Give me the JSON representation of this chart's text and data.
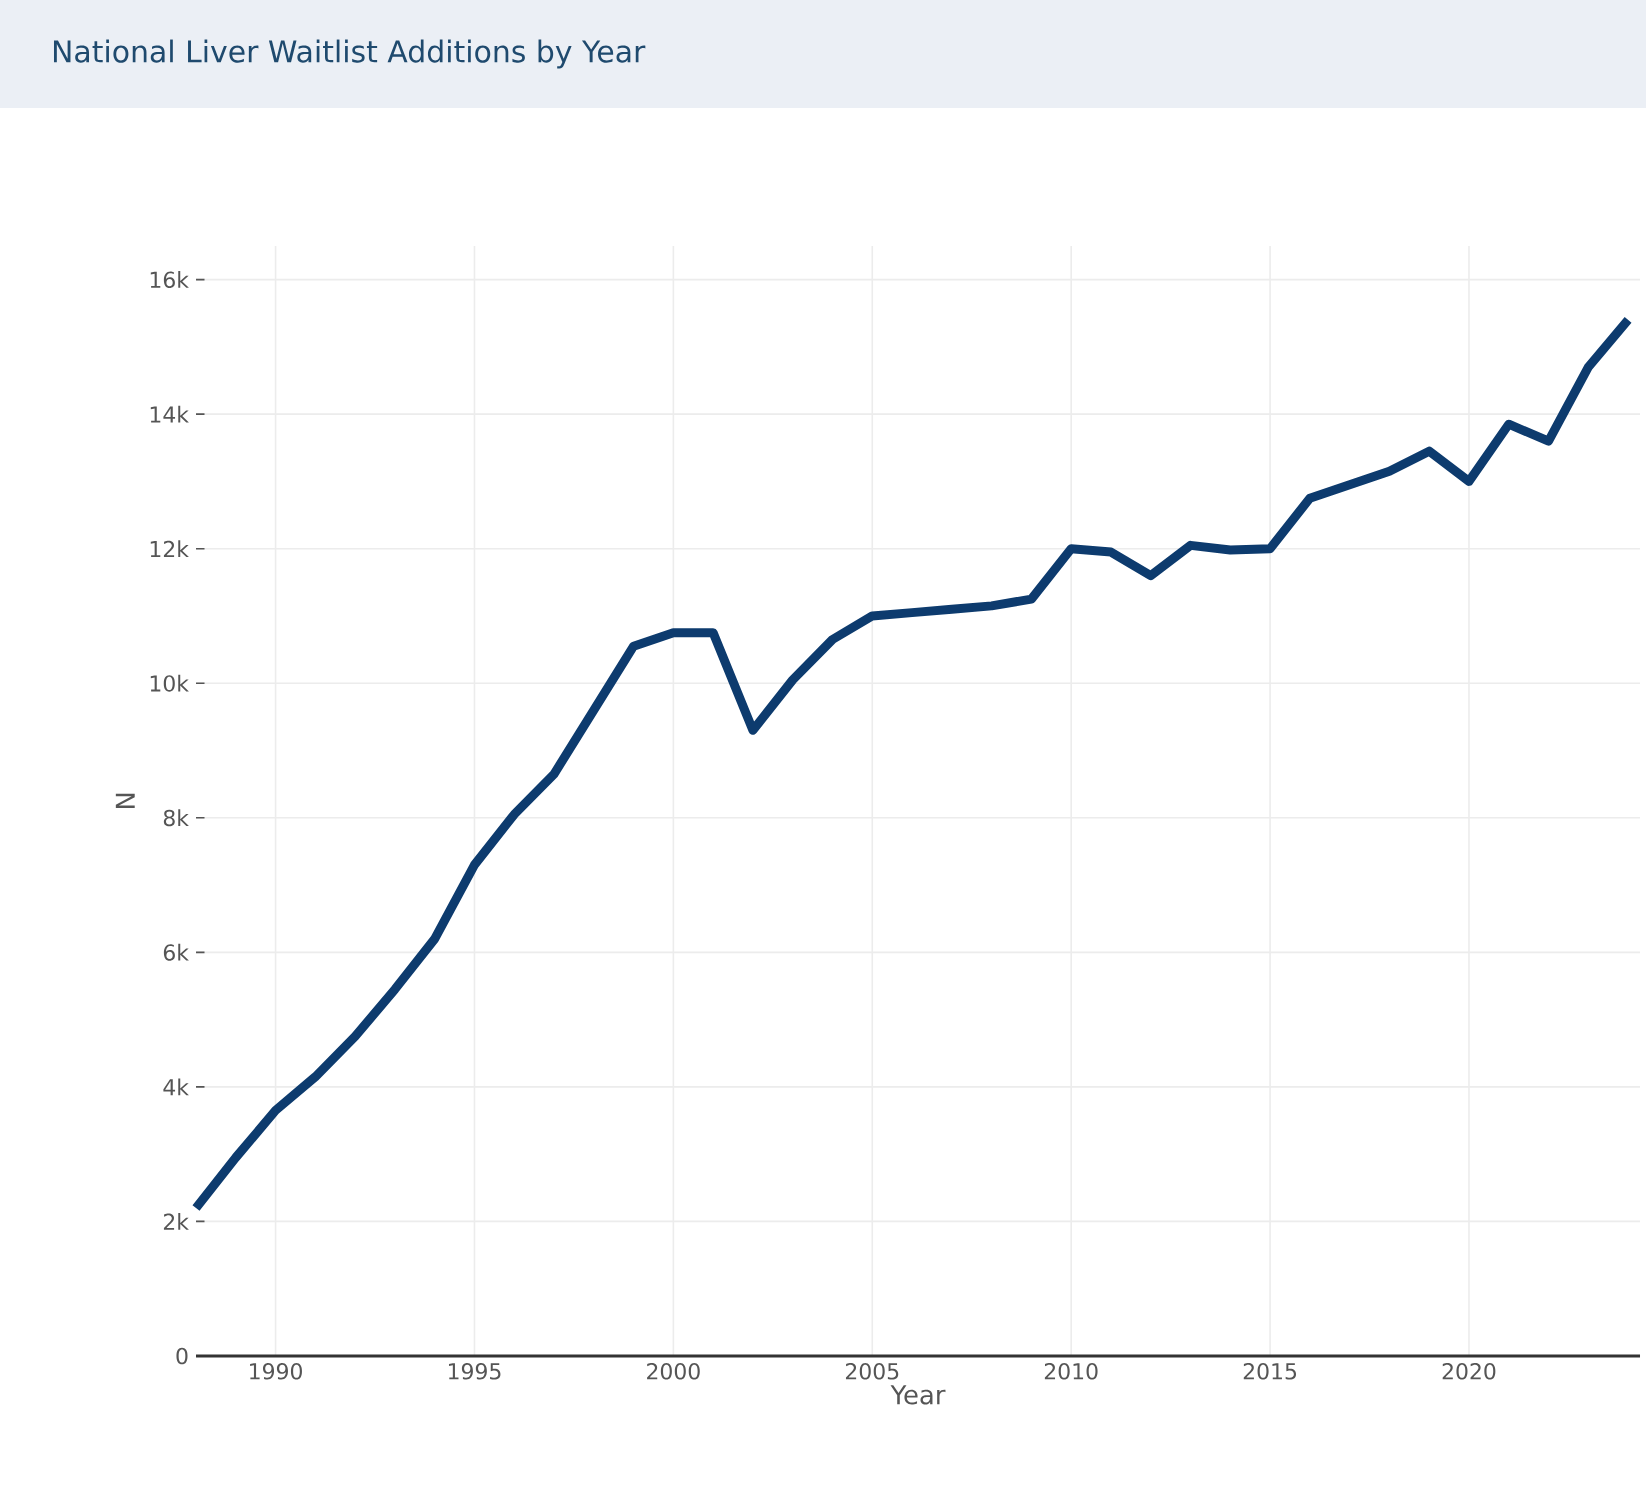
{
  "chart_data": {
    "type": "line",
    "title": "National Liver Waitlist Additions by Year",
    "xlabel": "Year",
    "ylabel": "N",
    "x": [
      1988,
      1989,
      1990,
      1991,
      1992,
      1993,
      1994,
      1995,
      1996,
      1997,
      1998,
      1999,
      2000,
      2001,
      2002,
      2003,
      2004,
      2005,
      2006,
      2007,
      2008,
      2009,
      2010,
      2011,
      2012,
      2013,
      2014,
      2015,
      2016,
      2017,
      2018,
      2019,
      2020,
      2021,
      2022,
      2023,
      2024
    ],
    "series": [
      {
        "color": "#0d3b6e",
        "values": [
          2200,
          2950,
          3650,
          4150,
          4750,
          5450,
          6200,
          7300,
          8050,
          8650,
          9600,
          10550,
          10750,
          10750,
          9300,
          10050,
          10650,
          11000,
          11050,
          11100,
          11150,
          11250,
          12000,
          11950,
          11600,
          12050,
          11980,
          12000,
          12750,
          12950,
          13150,
          13450,
          13000,
          13850,
          13600,
          14700,
          15400
        ]
      }
    ],
    "xlim": [
      1988,
      2024.3
    ],
    "ylim": [
      0,
      16500
    ],
    "xticks": [
      1990,
      1995,
      2000,
      2005,
      2010,
      2015,
      2020
    ],
    "yticks": [
      0,
      {
        "value": 2000,
        "label": "2k"
      },
      {
        "value": 4000,
        "label": "4k"
      },
      {
        "value": 6000,
        "label": "6k"
      },
      {
        "value": 8000,
        "label": "8k"
      },
      {
        "value": 10000,
        "label": "10k"
      },
      {
        "value": 12000,
        "label": "12k"
      },
      {
        "value": 14000,
        "label": "14k"
      },
      {
        "value": 16000,
        "label": "16k"
      }
    ],
    "grid": true,
    "marker": "none",
    "line_style": "solid"
  }
}
